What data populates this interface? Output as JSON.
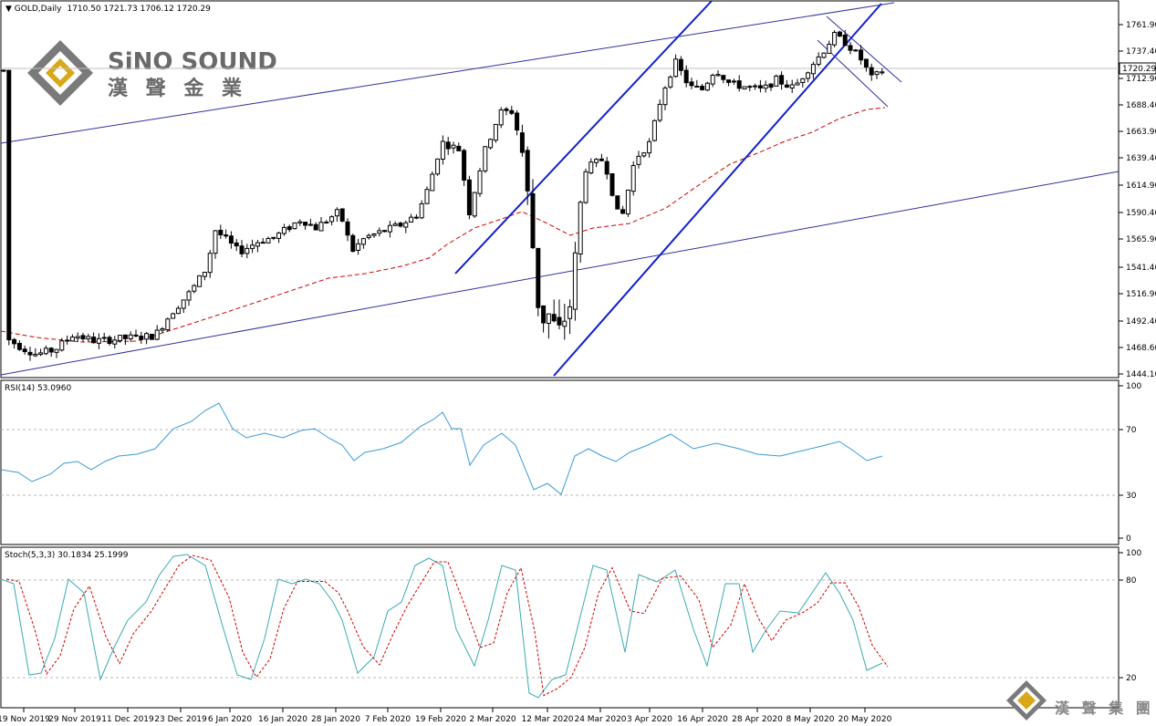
{
  "chart_data": [
    {
      "type": "candlestick",
      "symbol_label": "GOLD,Daily",
      "ohlc_label": "1710.50 1721.73 1706.12 1720.29",
      "last_price_label": "1720.29",
      "y_ticks": [
        "1761.90",
        "1737.40",
        "1712.90",
        "1688.40",
        "1663.90",
        "1639.40",
        "1614.90",
        "1590.40",
        "1565.90",
        "1541.40",
        "1516.90",
        "1492.40",
        "1468.60",
        "1444.10"
      ],
      "ylim": [
        1444.1,
        1775
      ],
      "x_labels": [
        "19 Nov 2019",
        "29 Nov 2019",
        "11 Dec 2019",
        "23 Dec 2019",
        "6 Jan 2020",
        "16 Jan 2020",
        "28 Jan 2020",
        "7 Feb 2020",
        "19 Feb 2020",
        "2 Mar 2020",
        "12 Mar 2020",
        "24 Mar 2020",
        "3 Apr 2020",
        "16 Apr 2020",
        "28 Apr 2020",
        "8 May 2020",
        "20 May 2020"
      ],
      "ma_color": "#d00000",
      "candle_color": "#000000"
    },
    {
      "type": "line",
      "label": "RSI(14) 53.0960",
      "y_ticks": [
        "100",
        "70",
        "30",
        "0"
      ],
      "ylim": [
        0,
        100
      ],
      "series_color": "#3a9ad9"
    },
    {
      "type": "line",
      "label": "Stoch(5,3,3) 30.1834 25.1999",
      "y_ticks": [
        "100",
        "80",
        "20"
      ],
      "ylim": [
        0,
        100
      ],
      "series_color": "#3aaab0",
      "signal_color": "#d00000"
    }
  ],
  "watermark": {
    "brand": "SiNO SOUND",
    "brand_cn": "漢 聲 金 業",
    "footer_cn": "漢 聲 集 團"
  }
}
